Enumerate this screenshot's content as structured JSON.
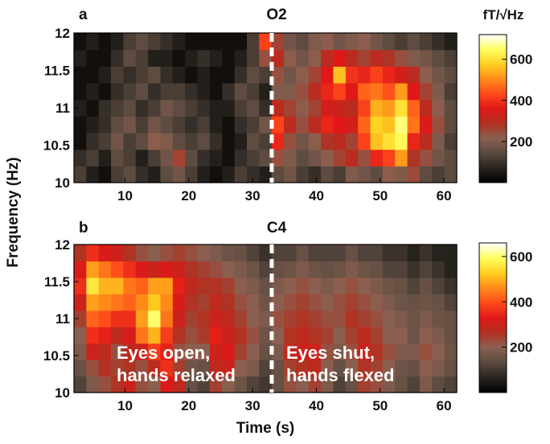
{
  "chart_data": [
    {
      "type": "heatmap",
      "panel_label": "a",
      "title": "O2",
      "xlabel": "Time (s)",
      "ylabel": "Frequency (Hz)",
      "xlim": [
        2,
        62
      ],
      "ylim": [
        10,
        12
      ],
      "x_ticks": [
        "10",
        "20",
        "30",
        "40",
        "50",
        "60"
      ],
      "y_ticks": [
        "10",
        "10.5",
        "11",
        "11.5",
        "12"
      ],
      "x": [
        2,
        4,
        6,
        8,
        10,
        12,
        14,
        16,
        18,
        20,
        22,
        24,
        26,
        28,
        30,
        32,
        34,
        36,
        38,
        40,
        42,
        44,
        46,
        48,
        50,
        52,
        54,
        56,
        58,
        60,
        62
      ],
      "y": [
        10.0,
        10.25,
        10.5,
        10.75,
        11.0,
        11.25,
        11.5,
        11.75,
        12.0
      ],
      "z": [
        [
          120,
          60,
          30,
          120,
          150,
          90,
          60,
          150,
          180,
          120,
          60,
          30,
          60,
          120,
          90,
          60,
          150,
          180,
          120,
          90,
          150,
          120,
          200,
          180,
          150,
          220,
          200,
          250,
          150,
          120,
          150
        ],
        [
          90,
          120,
          60,
          150,
          120,
          60,
          120,
          180,
          260,
          150,
          90,
          60,
          30,
          90,
          120,
          150,
          240,
          200,
          150,
          180,
          220,
          260,
          300,
          240,
          380,
          420,
          520,
          280,
          240,
          180,
          150
        ],
        [
          30,
          90,
          120,
          180,
          120,
          150,
          220,
          200,
          150,
          120,
          150,
          90,
          30,
          60,
          150,
          120,
          380,
          240,
          180,
          220,
          280,
          300,
          260,
          420,
          560,
          600,
          640,
          380,
          300,
          200,
          120
        ],
        [
          30,
          60,
          90,
          150,
          180,
          120,
          180,
          150,
          120,
          90,
          120,
          60,
          30,
          90,
          120,
          180,
          420,
          300,
          240,
          300,
          380,
          360,
          340,
          460,
          580,
          560,
          660,
          480,
          350,
          240,
          150
        ],
        [
          60,
          30,
          90,
          120,
          150,
          90,
          120,
          180,
          150,
          120,
          90,
          60,
          60,
          120,
          150,
          90,
          300,
          260,
          220,
          260,
          340,
          320,
          300,
          420,
          540,
          520,
          600,
          460,
          300,
          220,
          150
        ],
        [
          30,
          60,
          30,
          90,
          120,
          150,
          90,
          120,
          120,
          90,
          60,
          30,
          90,
          150,
          120,
          60,
          200,
          200,
          240,
          300,
          380,
          420,
          360,
          460,
          480,
          440,
          520,
          360,
          260,
          200,
          120
        ],
        [
          30,
          30,
          60,
          120,
          90,
          120,
          150,
          90,
          60,
          30,
          60,
          30,
          30,
          90,
          150,
          120,
          240,
          180,
          220,
          260,
          360,
          560,
          400,
          380,
          420,
          380,
          340,
          300,
          220,
          180,
          150
        ],
        [
          60,
          30,
          30,
          90,
          150,
          120,
          60,
          60,
          30,
          60,
          90,
          60,
          30,
          60,
          120,
          240,
          300,
          220,
          180,
          220,
          300,
          360,
          300,
          260,
          300,
          280,
          240,
          200,
          180,
          150,
          120
        ],
        [
          30,
          60,
          30,
          60,
          120,
          150,
          120,
          90,
          60,
          30,
          30,
          30,
          30,
          30,
          120,
          420,
          260,
          180,
          150,
          200,
          220,
          180,
          200,
          220,
          180,
          150,
          120,
          150,
          120,
          90,
          60
        ]
      ],
      "colorbar_label": "fT/√Hz",
      "colorbar_ticks": [
        "200",
        "400",
        "600"
      ],
      "colorbar_range": [
        0,
        720
      ]
    },
    {
      "type": "heatmap",
      "panel_label": "b",
      "title": "C4",
      "xlabel": "Time (s)",
      "ylabel": "Frequency (Hz)",
      "xlim": [
        2,
        62
      ],
      "ylim": [
        10,
        12
      ],
      "x_ticks": [
        "10",
        "20",
        "30",
        "40",
        "50",
        "60"
      ],
      "y_ticks": [
        "10",
        "10.5",
        "11",
        "11.5",
        "12"
      ],
      "x": [
        2,
        4,
        6,
        8,
        10,
        12,
        14,
        16,
        18,
        20,
        22,
        24,
        26,
        28,
        30,
        32,
        34,
        36,
        38,
        40,
        42,
        44,
        46,
        48,
        50,
        52,
        54,
        56,
        58,
        60,
        62
      ],
      "y": [
        10.0,
        10.25,
        10.5,
        10.75,
        11.0,
        11.25,
        11.5,
        11.75,
        12.0
      ],
      "z": [
        [
          120,
          180,
          220,
          260,
          300,
          220,
          200,
          320,
          280,
          150,
          120,
          240,
          200,
          160,
          120,
          100,
          150,
          220,
          200,
          240,
          180,
          120,
          150,
          240,
          220,
          180,
          150,
          120,
          180,
          140,
          120
        ],
        [
          150,
          220,
          260,
          240,
          260,
          220,
          280,
          360,
          240,
          160,
          150,
          280,
          300,
          200,
          180,
          120,
          150,
          240,
          260,
          280,
          200,
          150,
          200,
          260,
          240,
          200,
          160,
          150,
          200,
          180,
          150
        ],
        [
          180,
          300,
          280,
          220,
          280,
          300,
          380,
          340,
          220,
          200,
          200,
          300,
          320,
          240,
          200,
          150,
          180,
          280,
          300,
          300,
          220,
          180,
          220,
          300,
          260,
          220,
          180,
          180,
          220,
          200,
          160
        ],
        [
          200,
          360,
          340,
          280,
          320,
          440,
          500,
          380,
          260,
          220,
          250,
          340,
          300,
          260,
          220,
          160,
          200,
          260,
          280,
          260,
          240,
          200,
          240,
          280,
          240,
          200,
          200,
          160,
          200,
          180,
          150
        ],
        [
          240,
          420,
          400,
          360,
          360,
          480,
          600,
          440,
          300,
          240,
          260,
          300,
          280,
          240,
          200,
          180,
          220,
          240,
          260,
          240,
          220,
          220,
          260,
          240,
          220,
          200,
          180,
          160,
          180,
          160,
          150
        ],
        [
          300,
          480,
          460,
          440,
          420,
          460,
          520,
          460,
          320,
          260,
          240,
          280,
          260,
          220,
          200,
          160,
          200,
          220,
          240,
          220,
          200,
          220,
          240,
          220,
          200,
          180,
          160,
          150,
          160,
          150,
          120
        ],
        [
          360,
          560,
          500,
          500,
          440,
          420,
          480,
          480,
          340,
          280,
          260,
          260,
          240,
          200,
          180,
          150,
          180,
          200,
          220,
          200,
          180,
          200,
          220,
          200,
          180,
          160,
          150,
          120,
          150,
          120,
          90
        ],
        [
          320,
          480,
          440,
          400,
          360,
          320,
          300,
          320,
          300,
          260,
          240,
          220,
          200,
          180,
          160,
          120,
          150,
          160,
          180,
          160,
          150,
          160,
          180,
          160,
          150,
          120,
          120,
          90,
          120,
          90,
          60
        ],
        [
          260,
          360,
          320,
          300,
          260,
          220,
          200,
          220,
          240,
          220,
          200,
          180,
          160,
          150,
          120,
          90,
          120,
          120,
          150,
          120,
          120,
          120,
          150,
          120,
          120,
          90,
          90,
          60,
          90,
          60,
          60
        ]
      ],
      "colorbar_label": "",
      "colorbar_ticks": [
        "200",
        "400",
        "600"
      ],
      "colorbar_range": [
        0,
        660
      ]
    }
  ],
  "annotations": {
    "left_line1": "Eyes open,",
    "left_line2": "hands relaxed",
    "right_line1": "Eyes shut,",
    "right_line2": "hands flexed"
  },
  "event_time": 33,
  "colormap": [
    "#000000",
    "#2a2520",
    "#5a4a40",
    "#8a6050",
    "#b23020",
    "#e01818",
    "#ff4a1a",
    "#ff8c1a",
    "#ffd020",
    "#ffff60",
    "#ffffff"
  ]
}
